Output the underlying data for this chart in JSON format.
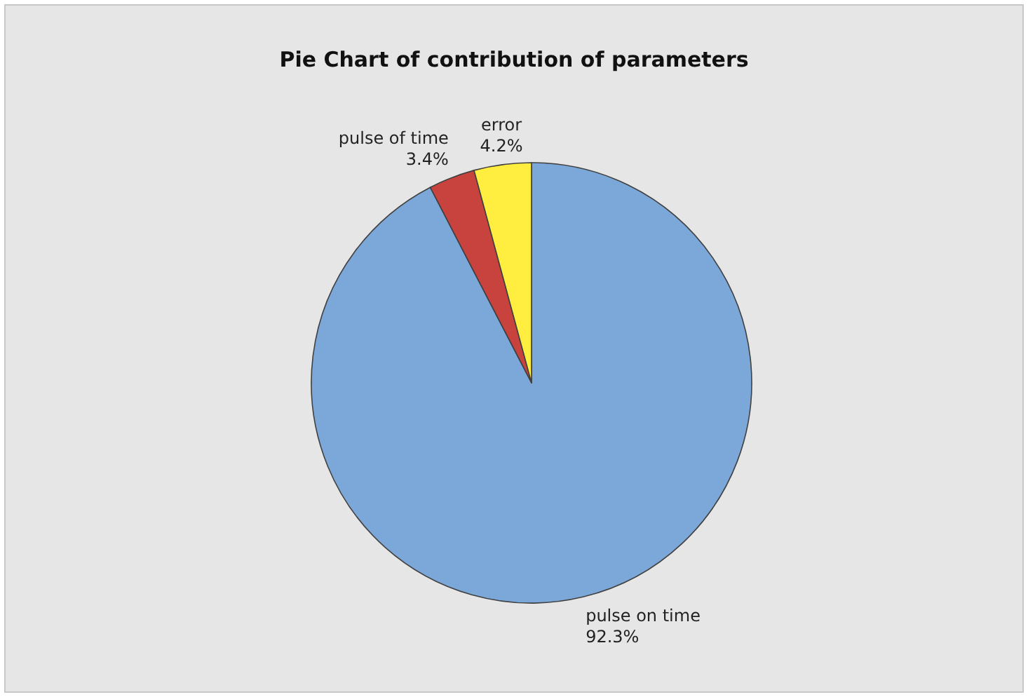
{
  "chart_data": {
    "type": "pie",
    "title": "Pie Chart of contribution of parameters",
    "categories": [
      "pulse on time",
      "pulse of time",
      "error"
    ],
    "values": [
      92.3,
      3.4,
      4.2
    ],
    "colors": [
      "#7ba7d9",
      "#c8433d",
      "#ffed3f"
    ],
    "value_labels": [
      "92.3%",
      "3.4%",
      "4.2%"
    ]
  }
}
